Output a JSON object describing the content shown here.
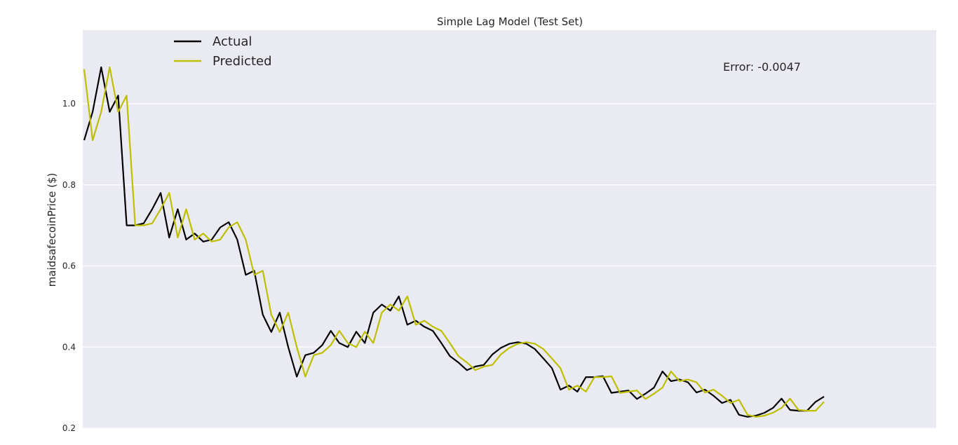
{
  "chart_data": {
    "type": "line",
    "title": "Simple Lag Model (Test Set)",
    "xlabel": "",
    "ylabel": "maidsafecoinPrice ($)",
    "ylim": [
      0.2,
      1.2
    ],
    "yticks": [
      "0.2",
      "0.4",
      "0.6",
      "0.8",
      "1.0"
    ],
    "grid": true,
    "legend_position": "top-left",
    "annotation": "Error: -0.0047",
    "colors": {
      "background": "#eaeaf2",
      "grid": "#ffffff",
      "actual": "#000000",
      "predicted": "#bfbf00"
    },
    "series": [
      {
        "name": "Actual",
        "values": [
          0.91,
          0.98,
          1.09,
          0.98,
          1.02,
          0.7,
          0.7,
          0.705,
          0.74,
          0.78,
          0.67,
          0.74,
          0.665,
          0.68,
          0.66,
          0.665,
          0.695,
          0.708,
          0.665,
          0.578,
          0.588,
          0.48,
          0.437,
          0.485,
          0.4,
          0.327,
          0.38,
          0.386,
          0.405,
          0.44,
          0.41,
          0.4,
          0.438,
          0.41,
          0.485,
          0.505,
          0.49,
          0.525,
          0.455,
          0.465,
          0.45,
          0.44,
          0.41,
          0.378,
          0.362,
          0.343,
          0.352,
          0.356,
          0.382,
          0.398,
          0.408,
          0.412,
          0.408,
          0.395,
          0.372,
          0.348,
          0.295,
          0.305,
          0.29,
          0.326,
          0.326,
          0.328,
          0.287,
          0.29,
          0.293,
          0.272,
          0.285,
          0.3,
          0.34,
          0.316,
          0.32,
          0.313,
          0.288,
          0.295,
          0.28,
          0.262,
          0.27,
          0.233,
          0.228,
          0.231,
          0.238,
          0.25,
          0.273,
          0.245,
          0.243,
          0.243,
          0.265,
          0.278
        ]
      },
      {
        "name": "Predicted",
        "values": [
          1.085,
          0.91,
          0.98,
          1.09,
          0.98,
          1.02,
          0.7,
          0.7,
          0.705,
          0.74,
          0.78,
          0.67,
          0.74,
          0.665,
          0.68,
          0.66,
          0.665,
          0.695,
          0.708,
          0.665,
          0.578,
          0.588,
          0.48,
          0.437,
          0.485,
          0.4,
          0.327,
          0.38,
          0.386,
          0.405,
          0.44,
          0.41,
          0.4,
          0.438,
          0.41,
          0.485,
          0.505,
          0.49,
          0.525,
          0.455,
          0.465,
          0.45,
          0.44,
          0.41,
          0.378,
          0.362,
          0.343,
          0.352,
          0.356,
          0.382,
          0.398,
          0.408,
          0.412,
          0.408,
          0.395,
          0.372,
          0.348,
          0.295,
          0.305,
          0.29,
          0.326,
          0.326,
          0.328,
          0.287,
          0.29,
          0.293,
          0.272,
          0.285,
          0.3,
          0.34,
          0.316,
          0.32,
          0.313,
          0.288,
          0.295,
          0.28,
          0.262,
          0.27,
          0.233,
          0.228,
          0.231,
          0.238,
          0.25,
          0.273,
          0.245,
          0.243,
          0.243,
          0.265
        ]
      }
    ]
  }
}
